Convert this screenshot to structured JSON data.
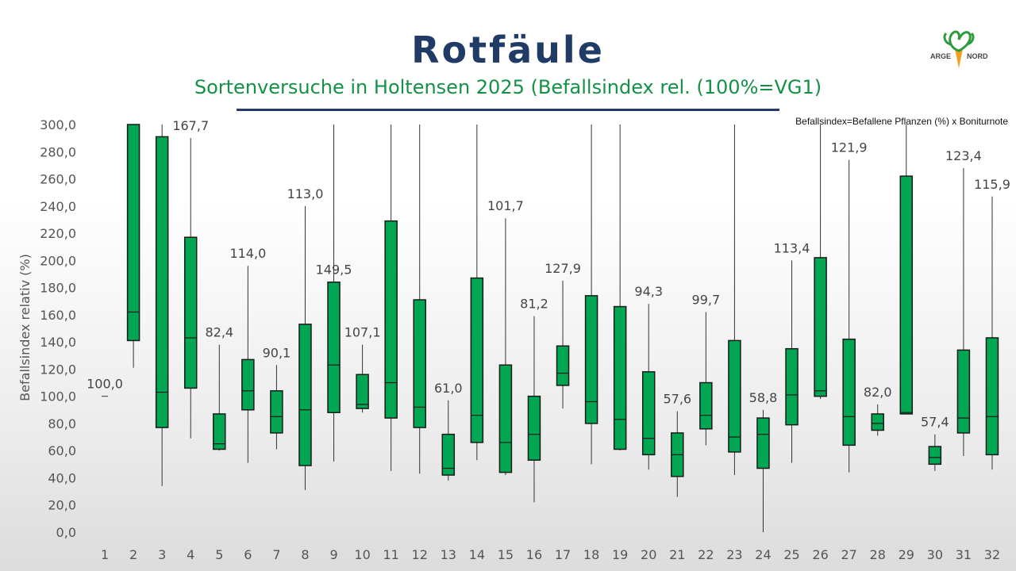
{
  "header": {
    "title": "Rotfäule",
    "subtitle": "Sortenversuche in Holtensen 2025 (Befallsindex rel. (100%=VG1)",
    "note": "Befallsindex=Befallene Pflanzen (%) x Boniturnote"
  },
  "logo": {
    "text_left": "ARGE",
    "text_right": "NORD",
    "colors": {
      "leaf": "#2e9a3e",
      "root": "#f0a023"
    }
  },
  "colors": {
    "box_fill": "#00a651",
    "box_stroke": "#1a1a1a",
    "whisker": "#333333"
  },
  "chart_data": {
    "type": "box",
    "ylabel": "Befallsindex relativ (%)",
    "xlabel": "",
    "ylim": [
      0,
      300
    ],
    "yticks": [
      "0,0",
      "20,0",
      "40,0",
      "60,0",
      "80,0",
      "100,0",
      "120,0",
      "140,0",
      "160,0",
      "180,0",
      "200,0",
      "220,0",
      "240,0",
      "260,0",
      "280,0",
      "300,0"
    ],
    "categories": [
      "1",
      "2",
      "3",
      "4",
      "5",
      "6",
      "7",
      "8",
      "9",
      "10",
      "11",
      "12",
      "13",
      "14",
      "15",
      "16",
      "17",
      "18",
      "19",
      "20",
      "21",
      "22",
      "23",
      "24",
      "25",
      "26",
      "27",
      "28",
      "29",
      "30",
      "31",
      "32"
    ],
    "boxes": [
      {
        "cat": "1",
        "min": 100,
        "q1": 100,
        "median": 100,
        "q3": 100,
        "max": 100,
        "label": "100,0"
      },
      {
        "cat": "2",
        "min": 121,
        "q1": 141,
        "median": 162,
        "q3": 300,
        "max": 300,
        "label": ""
      },
      {
        "cat": "3",
        "min": 34,
        "q1": 77,
        "median": 103,
        "q3": 291,
        "max": 300,
        "label": ""
      },
      {
        "cat": "4",
        "min": 69,
        "q1": 106,
        "median": 143,
        "q3": 217,
        "max": 290,
        "label": "167,7"
      },
      {
        "cat": "5",
        "min": 60,
        "q1": 61,
        "median": 65,
        "q3": 87,
        "max": 138,
        "label": "82,4"
      },
      {
        "cat": "6",
        "min": 51,
        "q1": 90,
        "median": 104,
        "q3": 127,
        "max": 196,
        "label": "114,0"
      },
      {
        "cat": "7",
        "min": 61,
        "q1": 73,
        "median": 85,
        "q3": 104,
        "max": 123,
        "label": "90,1"
      },
      {
        "cat": "8",
        "min": 31,
        "q1": 49,
        "median": 90,
        "q3": 153,
        "max": 240,
        "label": "113,0"
      },
      {
        "cat": "9",
        "min": 52,
        "q1": 88,
        "median": 123,
        "q3": 184,
        "max": 300,
        "label": "149,5"
      },
      {
        "cat": "10",
        "min": 88,
        "q1": 91,
        "median": 94,
        "q3": 116,
        "max": 138,
        "label": "107,1"
      },
      {
        "cat": "11",
        "min": 45,
        "q1": 84,
        "median": 110,
        "q3": 229,
        "max": 300,
        "label": ""
      },
      {
        "cat": "12",
        "min": 43,
        "q1": 77,
        "median": 92,
        "q3": 171,
        "max": 300,
        "label": ""
      },
      {
        "cat": "13",
        "min": 38,
        "q1": 42,
        "median": 47,
        "q3": 72,
        "max": 97,
        "label": "61,0"
      },
      {
        "cat": "14",
        "min": 53,
        "q1": 66,
        "median": 86,
        "q3": 187,
        "max": 300,
        "label": ""
      },
      {
        "cat": "15",
        "min": 42,
        "q1": 44,
        "median": 66,
        "q3": 123,
        "max": 231,
        "label": "101,7"
      },
      {
        "cat": "16",
        "min": 22,
        "q1": 53,
        "median": 72,
        "q3": 100,
        "max": 159,
        "label": "81,2"
      },
      {
        "cat": "17",
        "min": 91,
        "q1": 108,
        "median": 117,
        "q3": 137,
        "max": 185,
        "label": "127,9"
      },
      {
        "cat": "18",
        "min": 50,
        "q1": 80,
        "median": 96,
        "q3": 174,
        "max": 300,
        "label": ""
      },
      {
        "cat": "19",
        "min": 60,
        "q1": 61,
        "median": 83,
        "q3": 166,
        "max": 300,
        "label": ""
      },
      {
        "cat": "20",
        "min": 46,
        "q1": 57,
        "median": 69,
        "q3": 118,
        "max": 168,
        "label": "94,3"
      },
      {
        "cat": "21",
        "min": 26,
        "q1": 41,
        "median": 57,
        "q3": 73,
        "max": 89,
        "label": "57,6"
      },
      {
        "cat": "22",
        "min": 64,
        "q1": 76,
        "median": 86,
        "q3": 110,
        "max": 162,
        "label": "99,7"
      },
      {
        "cat": "23",
        "min": 42,
        "q1": 59,
        "median": 70,
        "q3": 141,
        "max": 300,
        "label": ""
      },
      {
        "cat": "24",
        "min": 0,
        "q1": 47,
        "median": 72,
        "q3": 84,
        "max": 90,
        "label": "58,8"
      },
      {
        "cat": "25",
        "min": 51,
        "q1": 79,
        "median": 101,
        "q3": 135,
        "max": 200,
        "label": "113,4"
      },
      {
        "cat": "26",
        "min": 98,
        "q1": 100,
        "median": 104,
        "q3": 202,
        "max": 300,
        "label": ""
      },
      {
        "cat": "27",
        "min": 44,
        "q1": 64,
        "median": 85,
        "q3": 142,
        "max": 274,
        "label": "121,9"
      },
      {
        "cat": "28",
        "min": 71,
        "q1": 75,
        "median": 80,
        "q3": 87,
        "max": 94,
        "label": "82,0"
      },
      {
        "cat": "29",
        "min": 87,
        "q1": 87,
        "median": 88,
        "q3": 262,
        "max": 300,
        "label": ""
      },
      {
        "cat": "30",
        "min": 45,
        "q1": 50,
        "median": 55,
        "q3": 63,
        "max": 72,
        "label": "57,4"
      },
      {
        "cat": "31",
        "min": 56,
        "q1": 73,
        "median": 84,
        "q3": 134,
        "max": 268,
        "label": "123,4"
      },
      {
        "cat": "32",
        "min": 46,
        "q1": 57,
        "median": 85,
        "q3": 143,
        "max": 247,
        "label": "115,9"
      }
    ]
  }
}
